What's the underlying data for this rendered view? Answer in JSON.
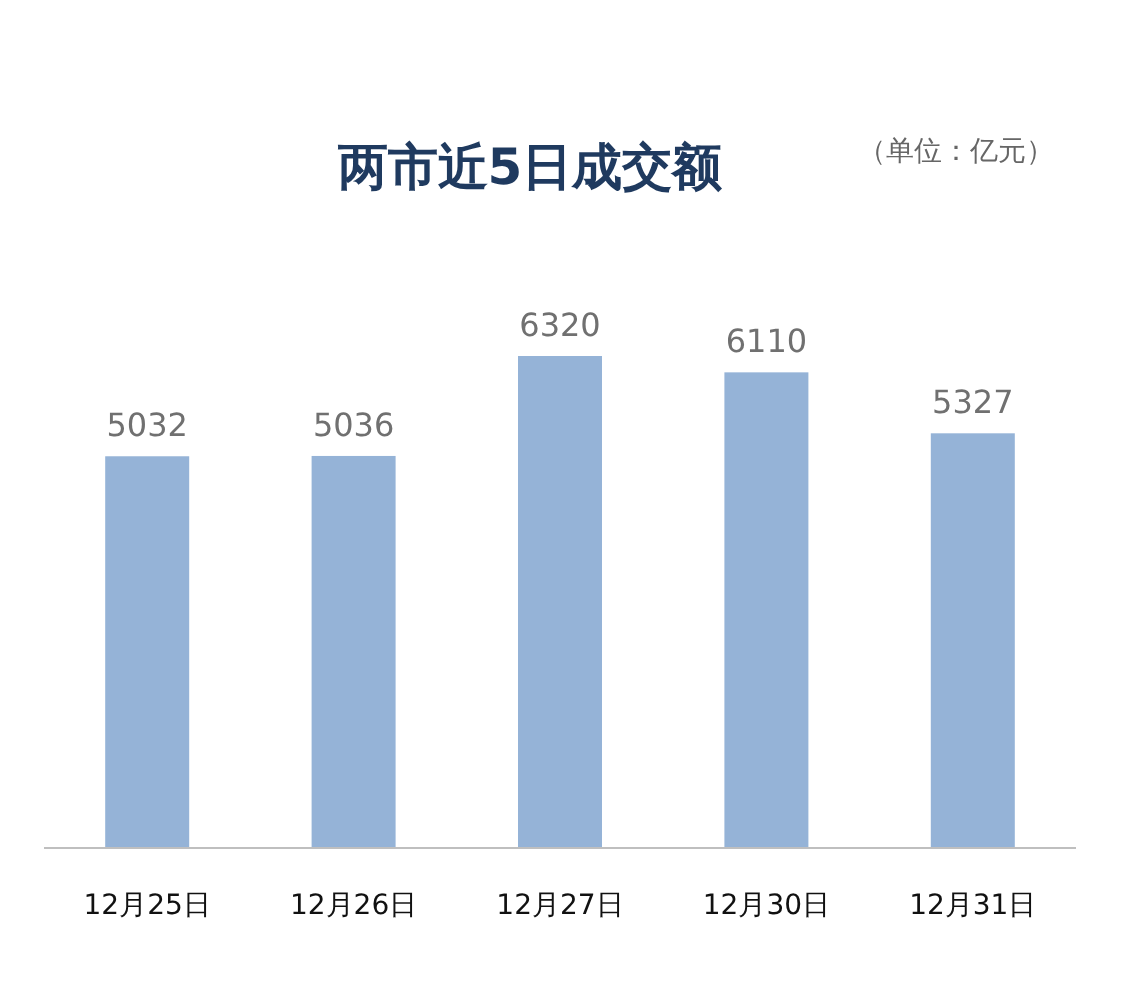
{
  "chart_data": {
    "type": "bar",
    "title": "两市近5日成交额",
    "subtitle": "（单位：亿元）",
    "categories": [
      "12月25日",
      "12月26日",
      "12月27日",
      "12月30日",
      "12月31日"
    ],
    "values": [
      5032,
      5036,
      6320,
      6110,
      5327
    ],
    "color": "#95b3d7",
    "data_labels": true
  }
}
